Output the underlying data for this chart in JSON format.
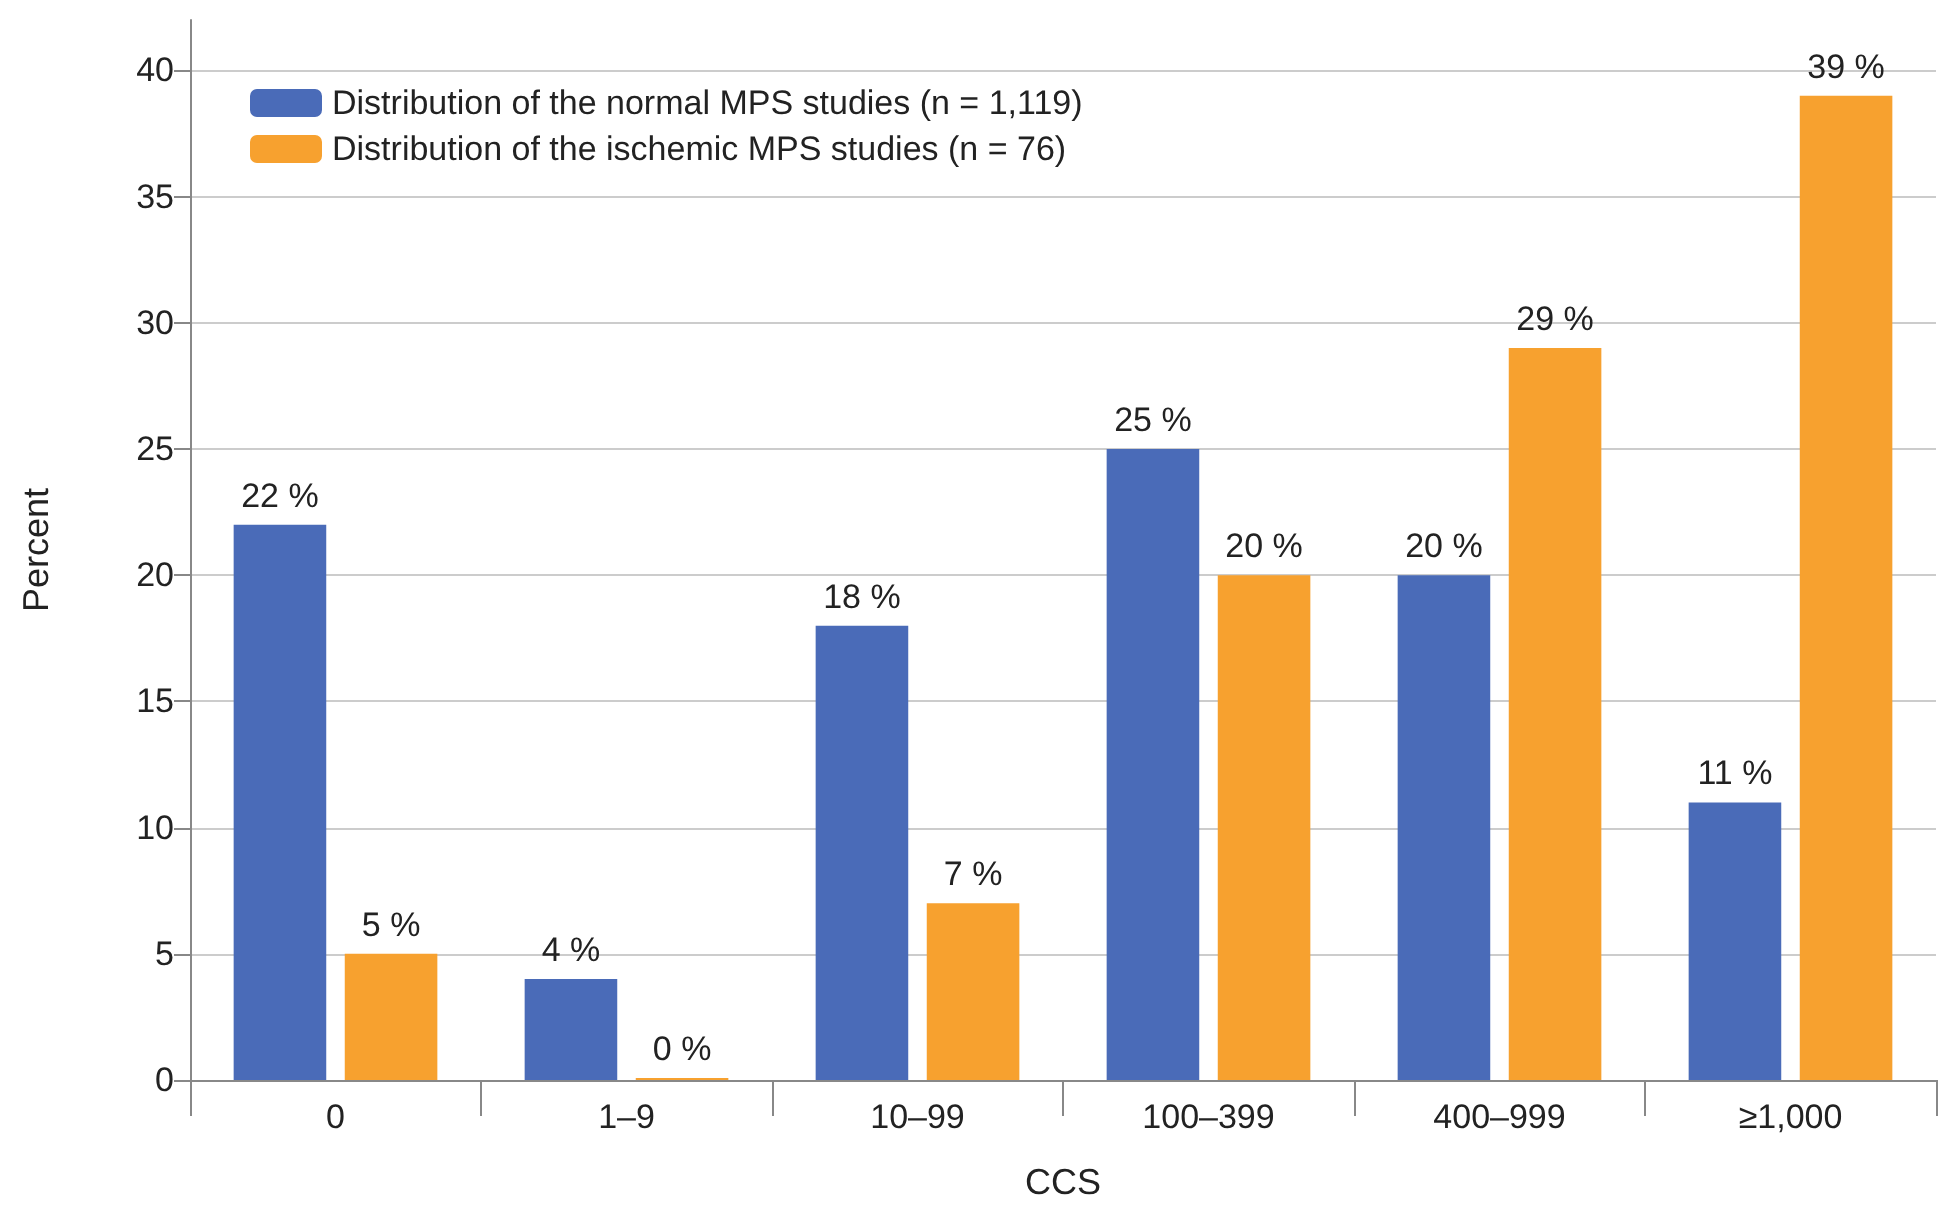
{
  "chart_data": {
    "type": "bar",
    "xlabel": "CCS",
    "ylabel": "Percent",
    "categories": [
      "0",
      "1–9",
      "10–99",
      "100–399",
      "400–999",
      "≥1,000"
    ],
    "series": [
      {
        "name": "Distribution of the normal MPS studies (n = 1,119)",
        "color": "#4a6bb8",
        "values": [
          22,
          4,
          18,
          25,
          20,
          11
        ],
        "value_labels": [
          "22 %",
          "4 %",
          "18 %",
          "25 %",
          "20 %",
          "11 %"
        ]
      },
      {
        "name": "Distribution of the ischemic MPS studies (n = 76)",
        "color": "#f7a12f",
        "values": [
          5,
          0,
          7,
          20,
          29,
          39
        ],
        "value_labels": [
          "5 %",
          "0 %",
          "7 %",
          "20 %",
          "29 %",
          "39 %"
        ]
      }
    ],
    "ylim": [
      0,
      42
    ],
    "yticks": [
      0,
      5,
      10,
      15,
      20,
      25,
      30,
      35,
      40
    ],
    "grid": "y",
    "legend": "top left"
  }
}
